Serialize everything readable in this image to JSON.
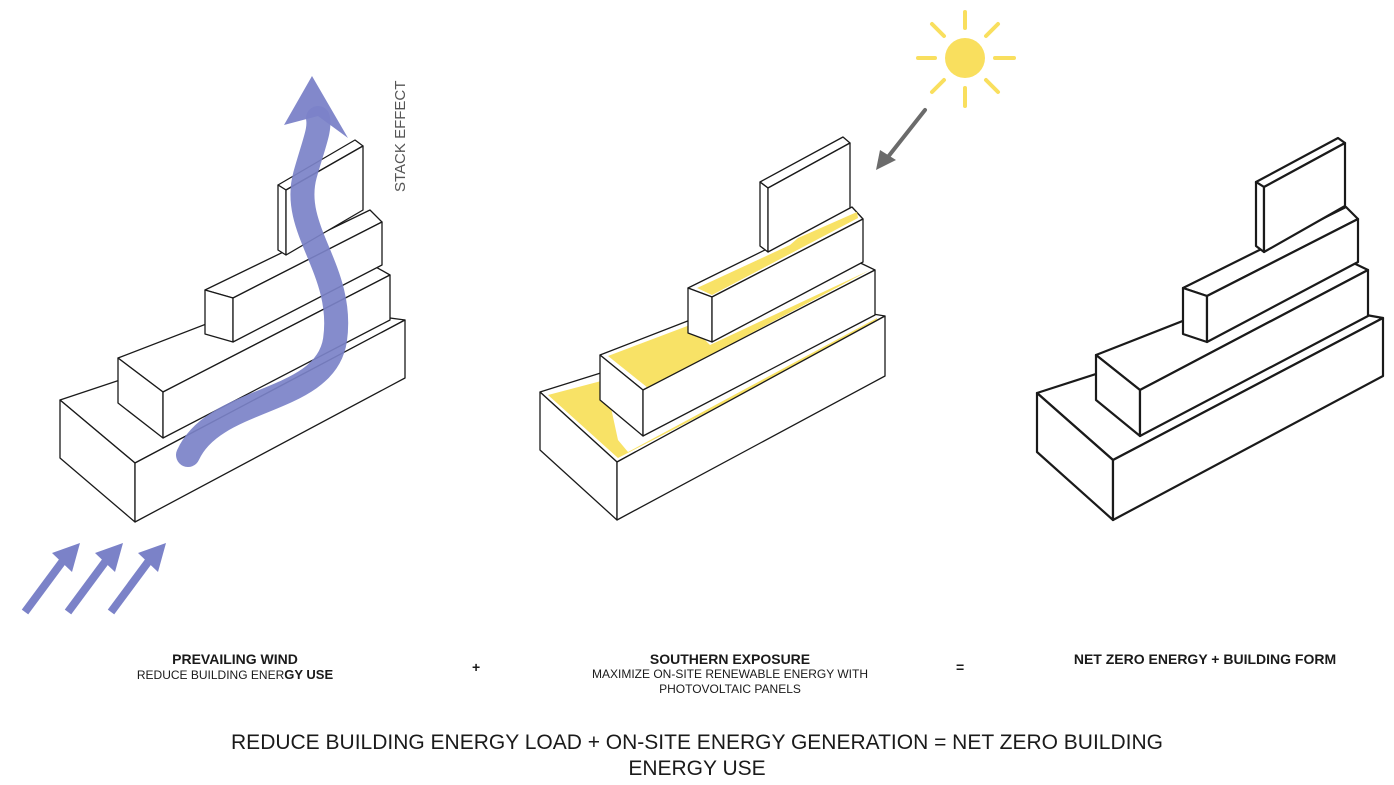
{
  "labels": {
    "stack_effect": "STACK EFFECT"
  },
  "captions": {
    "wind_title": "PREVAILING WIND",
    "wind_sub_normal": "REDUCE BUILDING ENER",
    "wind_sub_bold": "GY USE",
    "south_title": "SOUTHERN EXPOSURE",
    "south_sub_line1": "MAXIMIZE ON-SITE RENEWABLE ENERGY WITH",
    "south_sub_line2": "PHOTOVOLTAIC PANELS",
    "net_title": "NET ZERO ENERGY + BUILDING FORM"
  },
  "operators": {
    "plus": "+",
    "equals": "="
  },
  "bottom_line1": "REDUCE BUILDING ENERGY LOAD + ON-SITE ENERGY GENERATION = NET ZERO BUILDING",
  "bottom_line2": "ENERGY USE",
  "colors": {
    "wind": "#7b82c8",
    "solar": "#f8e266",
    "sun": "#f9df5e",
    "sun_arrow": "#6b6b6b",
    "line": "#1a1a1a"
  },
  "icons": {
    "wind_arrows": "wind-arrows-icon",
    "stack_arrow": "stack-arrow-icon",
    "sun": "sun-icon",
    "sun_arrow": "sun-ray-arrow-icon"
  }
}
